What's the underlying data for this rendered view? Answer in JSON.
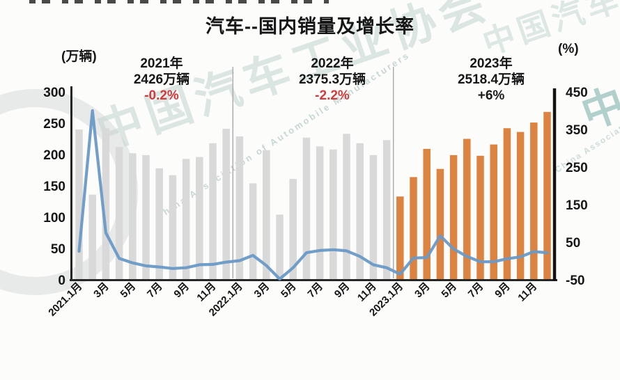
{
  "page": {
    "title": "汽车--国内销量及增长率"
  },
  "left_axis": {
    "unit": "(万辆)",
    "ticks": [
      300,
      250,
      200,
      150,
      100,
      50,
      0
    ]
  },
  "right_axis": {
    "unit": "(%)",
    "ticks": [
      450,
      350,
      250,
      150,
      50,
      -50
    ]
  },
  "annotations": [
    {
      "year": "2021年",
      "volume": "2426万辆",
      "growth": "-0.2%",
      "growth_color": "#d03c3c"
    },
    {
      "year": "2022年",
      "volume": "2375.3万辆",
      "growth": "-2.2%",
      "growth_color": "#d03c3c"
    },
    {
      "year": "2023年",
      "volume": "2518.4万辆",
      "growth": "+6%",
      "growth_color": "#1b1b1b"
    }
  ],
  "watermark": {
    "cn": "中国汽车工业协会",
    "en": "China Association of Automobile Manufacturers"
  },
  "chart_data": {
    "type": "bar",
    "title": "汽车--国内销量及增长率",
    "x_tick_labels": [
      "2021.1月",
      "3月",
      "5月",
      "7月",
      "9月",
      "11月",
      "2022.1月",
      "3月",
      "5月",
      "7月",
      "9月",
      "11月",
      "2023.1月",
      "3月",
      "5月",
      "7月",
      "9月",
      "11月"
    ],
    "x_tick_every": 2,
    "months_total": 36,
    "left_ylim": [
      0,
      300
    ],
    "right_ylim": [
      -50,
      450
    ],
    "grid": false,
    "legend_position": "none",
    "series": [
      {
        "name": "国内销量",
        "unit": "万辆",
        "type": "bar",
        "axis": "left",
        "values": [
          240,
          136,
          242,
          212,
          202,
          199,
          178,
          167,
          193,
          196,
          218,
          241,
          229,
          154,
          207,
          104,
          161,
          227,
          213,
          208,
          233,
          218,
          199,
          223,
          133,
          164,
          209,
          177,
          199,
          225,
          198,
          216,
          242,
          236,
          251,
          268
        ],
        "year_colors": [
          "#d9d9d9",
          "#d9d9d9",
          "#dd8342"
        ]
      },
      {
        "name": "增长率",
        "unit": "%",
        "type": "line",
        "axis": "right",
        "color": "#6a9ac6",
        "values": [
          26,
          400,
          75,
          7,
          -5,
          -13,
          -16,
          -20,
          -18,
          -10,
          -9,
          -3,
          1,
          15,
          -12,
          -48,
          -18,
          22,
          28,
          30,
          27,
          12,
          -10,
          -18,
          -35,
          8,
          9,
          67,
          32,
          12,
          -2,
          -2,
          6,
          11,
          25,
          22
        ]
      }
    ],
    "annual_summary": [
      {
        "year": 2021,
        "total_wan_liang": 2426,
        "growth_pct": -0.2
      },
      {
        "year": 2022,
        "total_wan_liang": 2375.3,
        "growth_pct": -2.2
      },
      {
        "year": 2023,
        "total_wan_liang": 2518.4,
        "growth_pct": 6
      }
    ]
  }
}
